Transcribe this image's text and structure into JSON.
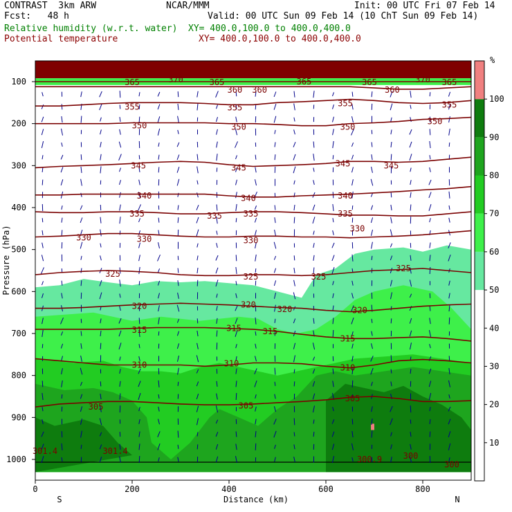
{
  "header": {
    "model": "CONTRAST  3km ARW",
    "center": "NCAR/MMM",
    "init": "Init: 00 UTC Fri 07 Feb 14",
    "fcst": "Fcst:   48 h",
    "valid": "Valid: 00 UTC Sun 09 Feb 14 (10 ChT Sun 09 Feb 14)",
    "rh_field": "Relative humidity (w.r.t. water)",
    "rh_xy": "XY= 400.0,100.0 to 400.0,400.0",
    "theta_field": "Potential temperature",
    "theta_xy": "XY= 400.0,100.0 to 400.0,400.0"
  },
  "colors": {
    "rh_label": "#008000",
    "theta_label": "#8b0000",
    "theta_line": "#7a0000",
    "wind_arrow": "#00008b",
    "fill_50": "#66e8a0",
    "fill_60": "#3ef04a",
    "fill_70": "#22cc22",
    "fill_80": "#1ea51e",
    "fill_90": "#0e7c0e",
    "fill_100": "#f08080",
    "cap": "#7f0000"
  },
  "chart_data": {
    "type": "line",
    "xlabel": "Distance (km)",
    "ylabel": "Pressure (hPa)",
    "xlim": [
      0,
      900
    ],
    "ylim": [
      1030,
      50
    ],
    "x_ticks": [
      "0",
      "200",
      "400",
      "600",
      "800"
    ],
    "y_ticks": [
      "100",
      "200",
      "300",
      "400",
      "500",
      "600",
      "700",
      "800",
      "900",
      "1000"
    ],
    "x_ends": [
      "S",
      "N"
    ],
    "colorbar": {
      "unit": "%",
      "levels": [
        "10",
        "20",
        "30",
        "40",
        "50",
        "60",
        "70",
        "80",
        "90",
        "100"
      ]
    },
    "x": [
      0,
      50,
      100,
      150,
      200,
      250,
      300,
      350,
      400,
      450,
      500,
      550,
      600,
      650,
      700,
      750,
      800,
      850,
      900
    ],
    "theta_lines": [
      {
        "theta": "365",
        "p": [
          100,
          100,
          100,
          100,
          100,
          100,
          100,
          100,
          100,
          100,
          100,
          100,
          100,
          100,
          100,
          100,
          100,
          100,
          100
        ]
      },
      {
        "theta": "360",
        "p": [
          112,
          112,
          112,
          112,
          112,
          112,
          112,
          112,
          112,
          112,
          112,
          112,
          112,
          112,
          115,
          118,
          118,
          115,
          112
        ]
      },
      {
        "theta": "355",
        "p": [
          158,
          158,
          155,
          152,
          150,
          150,
          150,
          152,
          155,
          155,
          150,
          148,
          145,
          142,
          145,
          150,
          152,
          150,
          145
        ]
      },
      {
        "theta": "350",
        "p": [
          200,
          200,
          200,
          200,
          198,
          198,
          198,
          198,
          200,
          200,
          202,
          205,
          205,
          200,
          198,
          195,
          190,
          188,
          185
        ]
      },
      {
        "theta": "345",
        "p": [
          305,
          302,
          300,
          298,
          295,
          292,
          290,
          292,
          298,
          302,
          300,
          298,
          295,
          290,
          290,
          292,
          290,
          285,
          280
        ]
      },
      {
        "theta": "340",
        "p": [
          370,
          370,
          368,
          368,
          368,
          368,
          368,
          368,
          372,
          375,
          375,
          372,
          370,
          368,
          365,
          362,
          358,
          355,
          350
        ]
      },
      {
        "theta": "335",
        "p": [
          410,
          412,
          412,
          410,
          410,
          412,
          415,
          415,
          412,
          410,
          410,
          412,
          415,
          418,
          418,
          420,
          420,
          415,
          410
        ]
      },
      {
        "theta": "330",
        "p": [
          470,
          468,
          465,
          462,
          462,
          465,
          468,
          470,
          470,
          468,
          468,
          470,
          470,
          472,
          470,
          468,
          465,
          460,
          455
        ]
      },
      {
        "theta": "325",
        "p": [
          560,
          555,
          552,
          550,
          552,
          555,
          560,
          562,
          562,
          560,
          560,
          562,
          560,
          555,
          550,
          548,
          545,
          550,
          555
        ]
      },
      {
        "theta": "320",
        "p": [
          640,
          640,
          638,
          635,
          632,
          630,
          628,
          630,
          632,
          635,
          638,
          640,
          645,
          648,
          645,
          640,
          635,
          632,
          630
        ]
      },
      {
        "theta": "315",
        "p": [
          690,
          690,
          690,
          690,
          688,
          686,
          686,
          686,
          688,
          690,
          695,
          702,
          708,
          712,
          712,
          710,
          708,
          712,
          718
        ]
      },
      {
        "theta": "310",
        "p": [
          760,
          765,
          770,
          775,
          775,
          775,
          775,
          778,
          775,
          770,
          770,
          772,
          778,
          782,
          775,
          765,
          762,
          765,
          770
        ]
      },
      {
        "theta": "305",
        "p": [
          875,
          868,
          865,
          862,
          862,
          865,
          868,
          870,
          870,
          868,
          865,
          862,
          858,
          852,
          850,
          855,
          862,
          862,
          860
        ]
      }
    ],
    "theta_labels": [
      {
        "text": "365",
        "x": 200,
        "p": 102
      },
      {
        "text": "370",
        "x": 290,
        "p": 95
      },
      {
        "text": "365",
        "x": 375,
        "p": 102
      },
      {
        "text": "365",
        "x": 555,
        "p": 100
      },
      {
        "text": "365",
        "x": 690,
        "p": 102
      },
      {
        "text": "370",
        "x": 800,
        "p": 95
      },
      {
        "text": "365",
        "x": 855,
        "p": 102
      },
      {
        "text": "360",
        "x": 412,
        "p": 120
      },
      {
        "text": "360",
        "x": 463,
        "p": 120
      },
      {
        "text": "360",
        "x": 737,
        "p": 120
      },
      {
        "text": "355",
        "x": 200,
        "p": 160
      },
      {
        "text": "355",
        "x": 412,
        "p": 162
      },
      {
        "text": "355",
        "x": 640,
        "p": 152
      },
      {
        "text": "355",
        "x": 855,
        "p": 155
      },
      {
        "text": "350",
        "x": 215,
        "p": 205
      },
      {
        "text": "350",
        "x": 420,
        "p": 208
      },
      {
        "text": "350",
        "x": 645,
        "p": 208
      },
      {
        "text": "350",
        "x": 825,
        "p": 195
      },
      {
        "text": "345",
        "x": 213,
        "p": 300
      },
      {
        "text": "345",
        "x": 420,
        "p": 305
      },
      {
        "text": "345",
        "x": 635,
        "p": 295
      },
      {
        "text": "345",
        "x": 735,
        "p": 300
      },
      {
        "text": "340",
        "x": 225,
        "p": 372
      },
      {
        "text": "340",
        "x": 440,
        "p": 378
      },
      {
        "text": "340",
        "x": 640,
        "p": 372
      },
      {
        "text": "335",
        "x": 210,
        "p": 415
      },
      {
        "text": "335",
        "x": 370,
        "p": 420
      },
      {
        "text": "335",
        "x": 445,
        "p": 415
      },
      {
        "text": "335",
        "x": 640,
        "p": 415
      },
      {
        "text": "330",
        "x": 100,
        "p": 472
      },
      {
        "text": "330",
        "x": 225,
        "p": 475
      },
      {
        "text": "330",
        "x": 445,
        "p": 478
      },
      {
        "text": "330",
        "x": 665,
        "p": 450
      },
      {
        "text": "325",
        "x": 160,
        "p": 558
      },
      {
        "text": "325",
        "x": 445,
        "p": 565
      },
      {
        "text": "325",
        "x": 585,
        "p": 565
      },
      {
        "text": "325",
        "x": 760,
        "p": 545
      },
      {
        "text": "320",
        "x": 215,
        "p": 635
      },
      {
        "text": "320",
        "x": 440,
        "p": 632
      },
      {
        "text": "320",
        "x": 515,
        "p": 642
      },
      {
        "text": "320",
        "x": 670,
        "p": 645
      },
      {
        "text": "315",
        "x": 215,
        "p": 692
      },
      {
        "text": "315",
        "x": 410,
        "p": 688
      },
      {
        "text": "315",
        "x": 485,
        "p": 695
      },
      {
        "text": "315",
        "x": 645,
        "p": 712
      },
      {
        "text": "310",
        "x": 215,
        "p": 775
      },
      {
        "text": "310",
        "x": 405,
        "p": 772
      },
      {
        "text": "310",
        "x": 645,
        "p": 782
      },
      {
        "text": "305",
        "x": 125,
        "p": 875
      },
      {
        "text": "305",
        "x": 435,
        "p": 872
      },
      {
        "text": "305",
        "x": 655,
        "p": 855
      },
      {
        "text": "301.4",
        "x": 20,
        "p": 980
      },
      {
        "text": "301.4",
        "x": 165,
        "p": 980
      },
      {
        "text": "300.9",
        "x": 690,
        "p": 1000
      },
      {
        "text": "300",
        "x": 775,
        "p": 992
      },
      {
        "text": "300",
        "x": 860,
        "p": 1012
      }
    ]
  }
}
